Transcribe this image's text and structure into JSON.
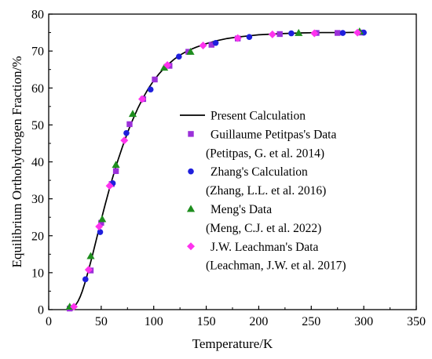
{
  "chart_data": {
    "type": "scatter",
    "xlabel": "Temperature/K",
    "ylabel": "Equilibrium Orthohydrogen Fraction/%",
    "xlim": [
      0,
      350
    ],
    "ylim": [
      0,
      80
    ],
    "xticks": [
      0,
      50,
      100,
      150,
      200,
      250,
      300,
      350
    ],
    "yticks": [
      0,
      10,
      20,
      30,
      40,
      50,
      60,
      70,
      80
    ],
    "grid": false,
    "legend_position": "center-right",
    "series": [
      {
        "name": "Present Calculation",
        "kind": "line",
        "color": "#000000",
        "x": [
          20,
          22,
          24,
          26,
          28,
          30,
          32,
          34,
          36,
          38,
          40,
          42,
          44,
          46,
          48,
          50,
          52,
          54,
          56,
          58,
          60,
          62,
          64,
          66,
          68,
          70,
          72,
          74,
          76,
          78,
          80,
          85,
          90,
          95,
          100,
          105,
          110,
          115,
          120,
          125,
          130,
          135,
          140,
          150,
          160,
          170,
          180,
          190,
          200,
          220,
          240,
          260,
          280,
          300
        ],
        "y": [
          0.2,
          0.4,
          0.8,
          1.4,
          2.3,
          3.5,
          5.0,
          6.8,
          8.7,
          10.8,
          12.9,
          15.1,
          17.4,
          19.7,
          22.0,
          24.3,
          26.5,
          28.7,
          30.8,
          32.9,
          34.9,
          36.8,
          38.7,
          40.5,
          42.2,
          43.9,
          45.5,
          47.1,
          48.6,
          50.0,
          51.4,
          54.6,
          57.4,
          59.9,
          62.0,
          63.8,
          65.4,
          66.7,
          67.9,
          68.9,
          69.7,
          70.4,
          71.0,
          72.0,
          72.8,
          73.4,
          73.8,
          74.1,
          74.4,
          74.7,
          74.9,
          75.0,
          75.0,
          75.1
        ]
      },
      {
        "name": "Guillaume Petitpas's Data",
        "citation": "(Petitpas, G. et al. 2014)",
        "kind": "square",
        "color": "#9b30d9",
        "x": [
          20,
          40,
          50,
          60,
          64,
          77,
          90,
          101,
          115,
          133,
          155,
          180,
          220,
          255,
          275,
          298
        ],
        "y": [
          0.3,
          10.6,
          23.5,
          34.0,
          37.5,
          50.2,
          57.0,
          62.3,
          66.0,
          69.8,
          71.7,
          73.4,
          74.6,
          74.9,
          74.9,
          75.0
        ]
      },
      {
        "name": "Zhang's Calculation",
        "citation": "(Zhang, L.L. et al. 2016)",
        "kind": "circle",
        "color": "#1f1fdc",
        "x": [
          35,
          49,
          61,
          74,
          97,
          124,
          159,
          191,
          231,
          280,
          300
        ],
        "y": [
          8.2,
          21.0,
          34.2,
          47.8,
          59.6,
          68.5,
          72.2,
          73.8,
          74.8,
          74.9,
          75.0
        ]
      },
      {
        "name": "Meng's Data",
        "citation": "(Meng, C.J. et al. 2022)",
        "kind": "triangle",
        "color": "#1e8e1e",
        "x": [
          20,
          40,
          51,
          64,
          80,
          110,
          135,
          238,
          296
        ],
        "y": [
          0.8,
          14.5,
          24.5,
          39.2,
          53.0,
          65.5,
          69.8,
          74.9,
          75.3
        ]
      },
      {
        "name": "J.W. Leachman's Data",
        "citation": "(Leachman, J.W. et al. 2017)",
        "kind": "diamond",
        "color": "#ff33ee",
        "x": [
          24,
          38,
          48,
          58,
          72,
          89,
          113,
          147,
          180,
          213,
          253,
          294
        ],
        "y": [
          0.8,
          10.8,
          22.5,
          33.5,
          45.8,
          57.0,
          66.2,
          71.5,
          73.5,
          74.5,
          74.8,
          75.0
        ]
      }
    ]
  }
}
